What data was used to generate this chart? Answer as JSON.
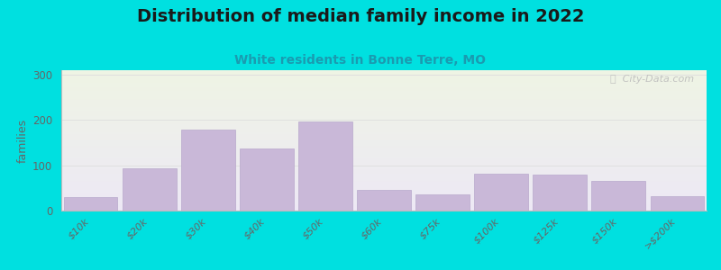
{
  "categories": [
    "$10k",
    "$20k",
    "$30k",
    "$40k",
    "$50k",
    "$60k",
    "$75k",
    "$100k",
    "$125k",
    "$150k",
    ">$200k"
  ],
  "values": [
    30,
    93,
    178,
    138,
    197,
    45,
    35,
    82,
    80,
    65,
    32
  ],
  "bar_color": "#c9b8d8",
  "bar_edge_color": "#b8a8cc",
  "title": "Distribution of median family income in 2022",
  "subtitle": "White residents in Bonne Terre, MO",
  "ylabel": "families",
  "ylim": [
    0,
    310
  ],
  "yticks": [
    0,
    100,
    200,
    300
  ],
  "background_color": "#00e0e0",
  "plot_bg_top_color": "#eef4e4",
  "plot_bg_bottom_color": "#ede8f5",
  "title_fontsize": 14,
  "subtitle_fontsize": 10,
  "subtitle_color": "#1a9bb0",
  "watermark_text": "ⓘ  City-Data.com",
  "grid_color": "#dddddd"
}
